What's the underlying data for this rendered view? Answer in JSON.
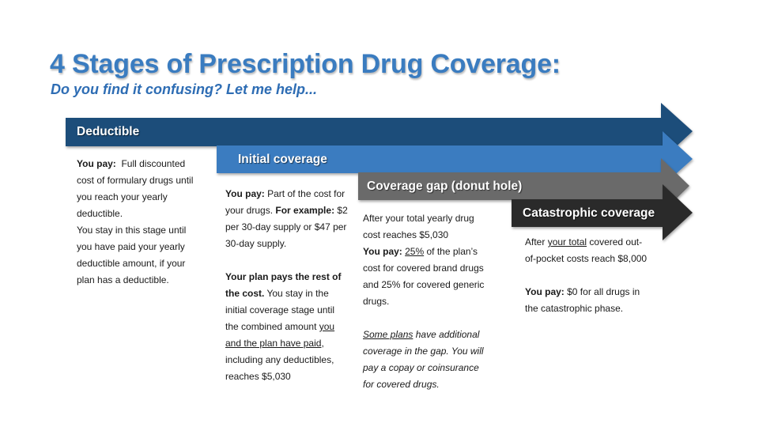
{
  "slide": {
    "title": "4 Stages of Prescription Drug Coverage:",
    "subtitle": "Do you find it confusing?  Let me help..."
  },
  "colors": {
    "title": "#3a7cc0",
    "deductible": "#1f4d7a",
    "initial": "#3a7cc0",
    "gap": "#6b6b6b",
    "catastrophic": "#2a2a2a"
  },
  "stages": {
    "deductible": {
      "label": "Deductible",
      "you_pay_label": "You pay:",
      "you_pay_text": "Full discounted cost of formulary drugs until you reach your yearly deductible.",
      "stay_text": "You stay in this stage until you have paid your yearly deductible amount, if your plan has a deductible."
    },
    "initial": {
      "label": "Initial coverage",
      "you_pay_label": "You pay:",
      "you_pay_text": "Part of the cost for your drugs.",
      "example_label": "For example:",
      "example_text": "$2 per 30-day supply or $47 per 30-day supply.",
      "plan_pays_label": "Your plan pays the rest of the cost.",
      "stay_text_1": "You stay in the initial coverage stage until the combined amount",
      "stay_underlined": "you and the plan have paid",
      "stay_text_2": ", including any deductibles, reaches $5,030"
    },
    "gap": {
      "label": "Coverage gap (donut hole)",
      "after_text": "After your total yearly drug cost reaches $5,030",
      "you_pay_label": "You pay:",
      "percent": "25%",
      "you_pay_text": "of the plan’s cost for covered brand drugs and 25% for covered generic drugs.",
      "some_plans": "Some plans",
      "some_plans_text": "have additional coverage in the gap. You will pay a copay or coinsurance for covered drugs."
    },
    "catastrophic": {
      "label": "Catastrophic coverage",
      "after_text_1": "After",
      "after_underlined": "your total",
      "after_text_2": "covered out-of-pocket costs reach $8,000",
      "you_pay_label": "You pay:",
      "you_pay_text": "$0 for all drugs in the catastrophic phase."
    }
  }
}
